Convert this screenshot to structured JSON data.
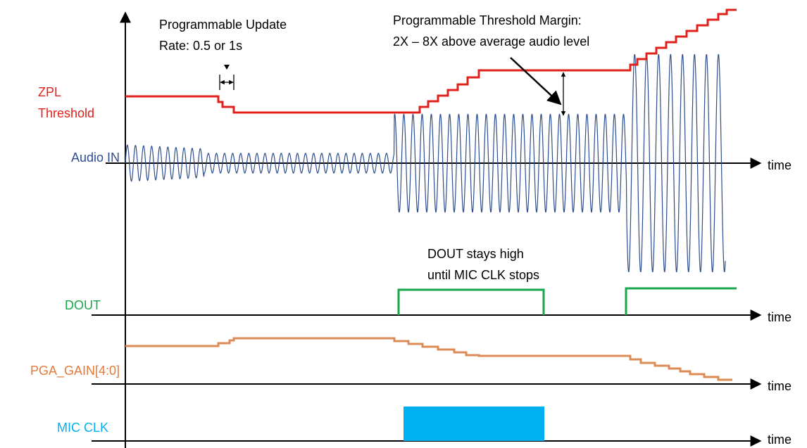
{
  "annotations": {
    "update_rate": [
      "Programmable Update",
      "Rate: 0.5 or 1s"
    ],
    "threshold_margin": [
      "Programmable Threshold Margin:",
      "2X – 8X above average audio level"
    ],
    "dout_note": [
      "DOUT stays high",
      "until MIC CLK stops"
    ]
  },
  "signals": {
    "zpl": [
      "ZPL",
      "Threshold"
    ],
    "audio": "Audio IN",
    "dout": "DOUT",
    "pga": "PGA_GAIN[4:0]",
    "micclk": "MIC CLK"
  },
  "time_labels": [
    "time",
    "time",
    "time",
    "time"
  ]
}
